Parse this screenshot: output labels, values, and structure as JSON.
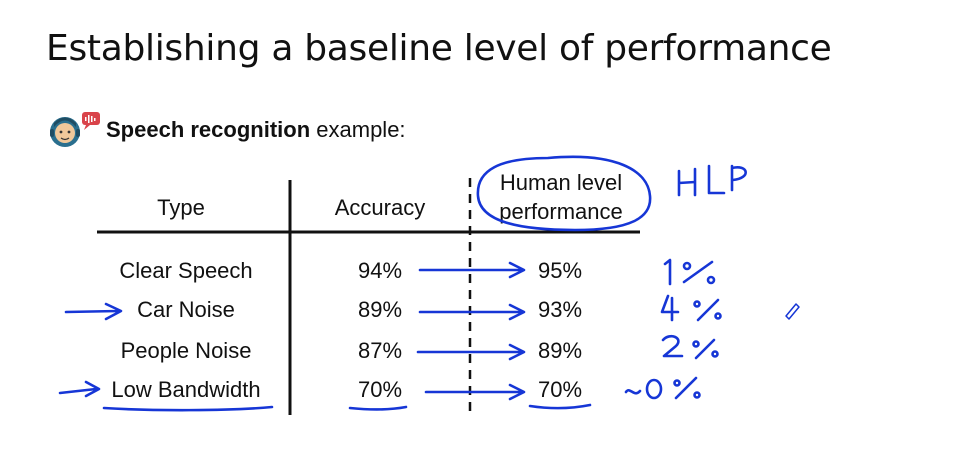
{
  "slide": {
    "title": "Establishing a baseline level of performance",
    "subtitle_bold": "Speech recognition",
    "subtitle_rest": " example:"
  },
  "table": {
    "headers": [
      "Type",
      "Accuracy",
      "Human level",
      "performance"
    ],
    "rows": [
      {
        "type": "Clear Speech",
        "accuracy": "94%",
        "hlp": "95%",
        "gap": "1%"
      },
      {
        "type": "Car Noise",
        "accuracy": "89%",
        "hlp": "93%",
        "gap": "4%"
      },
      {
        "type": "People Noise",
        "accuracy": "87%",
        "hlp": "89%",
        "gap": "2%"
      },
      {
        "type": "Low Bandwidth",
        "accuracy": "70%",
        "hlp": "70%",
        "gap": "~0%"
      }
    ]
  },
  "annotations": {
    "hlp_label": "HLP",
    "ink_color": "#1636d6"
  }
}
